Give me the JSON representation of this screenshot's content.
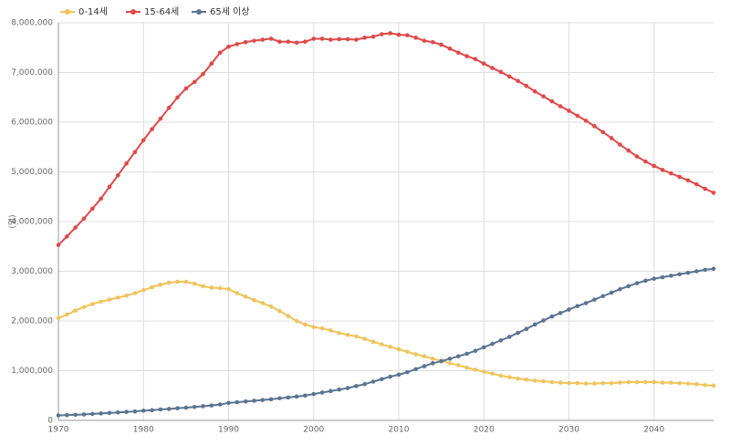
{
  "chart_data": {
    "type": "line",
    "y_label": "(명)",
    "x": [
      1970,
      1971,
      1972,
      1973,
      1974,
      1975,
      1976,
      1977,
      1978,
      1979,
      1980,
      1981,
      1982,
      1983,
      1984,
      1985,
      1986,
      1987,
      1988,
      1989,
      1990,
      1991,
      1992,
      1993,
      1994,
      1995,
      1996,
      1997,
      1998,
      1999,
      2000,
      2001,
      2002,
      2003,
      2004,
      2005,
      2006,
      2007,
      2008,
      2009,
      2010,
      2011,
      2012,
      2013,
      2014,
      2015,
      2016,
      2017,
      2018,
      2019,
      2020,
      2021,
      2022,
      2023,
      2024,
      2025,
      2026,
      2027,
      2028,
      2029,
      2030,
      2031,
      2032,
      2033,
      2034,
      2035,
      2036,
      2037,
      2038,
      2039,
      2040,
      2041,
      2042,
      2043,
      2044,
      2045,
      2046,
      2047
    ],
    "series": [
      {
        "name": "0-14세",
        "color": "#f0c35c",
        "values": [
          2060000,
          2130000,
          2210000,
          2280000,
          2340000,
          2390000,
          2430000,
          2470000,
          2510000,
          2560000,
          2620000,
          2680000,
          2730000,
          2770000,
          2790000,
          2790000,
          2750000,
          2700000,
          2670000,
          2660000,
          2640000,
          2560000,
          2490000,
          2420000,
          2360000,
          2290000,
          2200000,
          2100000,
          2000000,
          1930000,
          1880000,
          1850000,
          1810000,
          1760000,
          1720000,
          1690000,
          1640000,
          1580000,
          1530000,
          1480000,
          1430000,
          1380000,
          1330000,
          1290000,
          1240000,
          1200000,
          1150000,
          1110000,
          1060000,
          1020000,
          980000,
          940000,
          900000,
          870000,
          840000,
          820000,
          800000,
          790000,
          770000,
          760000,
          750000,
          750000,
          740000,
          740000,
          750000,
          750000,
          760000,
          770000,
          770000,
          770000,
          770000,
          760000,
          760000,
          750000,
          740000,
          730000,
          710000,
          700000
        ]
      },
      {
        "name": "15-64세",
        "color": "#e04848",
        "values": [
          3530000,
          3700000,
          3880000,
          4060000,
          4260000,
          4460000,
          4700000,
          4930000,
          5170000,
          5400000,
          5640000,
          5860000,
          6070000,
          6290000,
          6500000,
          6680000,
          6810000,
          6970000,
          7180000,
          7400000,
          7520000,
          7570000,
          7610000,
          7640000,
          7660000,
          7680000,
          7620000,
          7620000,
          7600000,
          7620000,
          7680000,
          7680000,
          7660000,
          7670000,
          7670000,
          7660000,
          7700000,
          7720000,
          7770000,
          7790000,
          7760000,
          7750000,
          7700000,
          7640000,
          7610000,
          7560000,
          7480000,
          7400000,
          7330000,
          7270000,
          7180000,
          7090000,
          7010000,
          6920000,
          6830000,
          6730000,
          6620000,
          6520000,
          6420000,
          6320000,
          6230000,
          6130000,
          6030000,
          5920000,
          5800000,
          5680000,
          5550000,
          5430000,
          5310000,
          5210000,
          5120000,
          5040000,
          4970000,
          4900000,
          4830000,
          4750000,
          4660000,
          4580000
        ]
      },
      {
        "name": "65세 이상",
        "color": "#5a7490",
        "values": [
          100000,
          105000,
          112000,
          120000,
          130000,
          140000,
          150000,
          160000,
          170000,
          180000,
          195000,
          205000,
          220000,
          230000,
          245000,
          255000,
          270000,
          285000,
          300000,
          320000,
          350000,
          365000,
          380000,
          395000,
          410000,
          425000,
          445000,
          460000,
          480000,
          500000,
          530000,
          560000,
          590000,
          620000,
          650000,
          690000,
          730000,
          780000,
          830000,
          880000,
          920000,
          970000,
          1030000,
          1090000,
          1150000,
          1190000,
          1240000,
          1290000,
          1340000,
          1400000,
          1470000,
          1540000,
          1610000,
          1680000,
          1760000,
          1840000,
          1930000,
          2010000,
          2090000,
          2160000,
          2230000,
          2300000,
          2360000,
          2430000,
          2500000,
          2570000,
          2640000,
          2700000,
          2760000,
          2810000,
          2850000,
          2880000,
          2910000,
          2940000,
          2970000,
          3000000,
          3030000,
          3050000
        ]
      }
    ],
    "xlim": [
      1970,
      2047
    ],
    "xticks": [
      1970,
      1980,
      1990,
      2000,
      2010,
      2020,
      2030,
      2040
    ],
    "ylim": [
      0,
      8000000
    ],
    "yticks": [
      0,
      {
        "value": 1000000,
        "label": "1,000,000"
      },
      {
        "value": 2000000,
        "label": "2,000,000"
      },
      {
        "value": 3000000,
        "label": "3,000,000"
      },
      {
        "value": 4000000,
        "label": "4,000,000"
      },
      {
        "value": 5000000,
        "label": "5,000,000"
      },
      {
        "value": 6000000,
        "label": "6,000,000"
      },
      {
        "value": 7000000,
        "label": "7,000,000"
      },
      {
        "value": 8000000,
        "label": "8,000,000"
      }
    ],
    "grid": true
  }
}
